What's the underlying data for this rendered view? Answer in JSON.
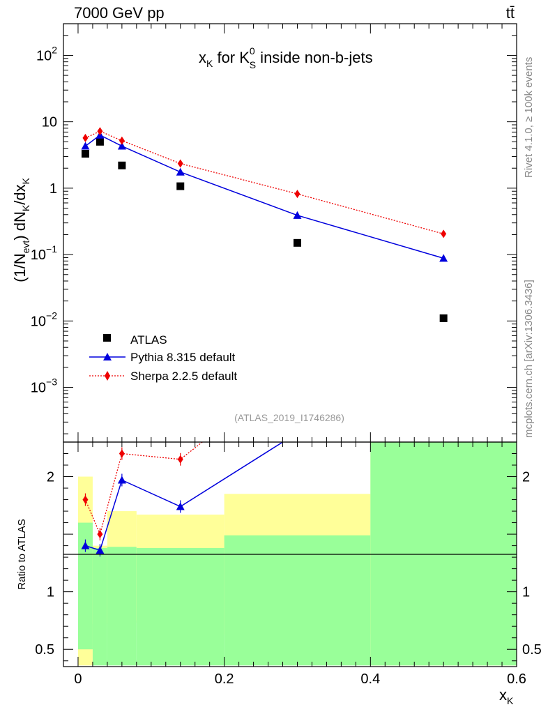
{
  "header": {
    "energy_label": "7000 GeV pp",
    "process_label": "tt̄"
  },
  "side_text": {
    "rivet": "Rivet 4.1.0, ≥ 100k events",
    "mcplots": "mcplots.cern.ch [arXiv:1306.3436]"
  },
  "chart_data": [
    {
      "type": "scatter",
      "panel": "main",
      "title_main": "x",
      "title_sub": "K",
      "title_for": " for K",
      "title_sup": "0",
      "title_sub2": "S",
      "title_rest": " inside non-b-jets",
      "ylabel": "(1/N_evt) dN_K/dx_K",
      "yscale": "log",
      "ylim": [
        0.00015,
        300
      ],
      "xlim": [
        -0.02,
        0.6
      ],
      "x": [
        0.01,
        0.03,
        0.06,
        0.14,
        0.3,
        0.5
      ],
      "series": [
        {
          "name": "ATLAS",
          "marker": "square",
          "color": "#000000",
          "values": [
            3.3,
            5.0,
            2.2,
            1.07,
            0.15,
            0.011
          ]
        },
        {
          "name": "Pythia 8.315 default",
          "marker": "triangle",
          "color": "#0000dd",
          "line": "solid",
          "values": [
            4.3,
            6.3,
            4.3,
            1.75,
            0.39,
            0.088
          ]
        },
        {
          "name": "Sherpa 2.2.5 default",
          "marker": "diamond",
          "color": "#ee0000",
          "line": "dotted",
          "values": [
            5.7,
            7.2,
            5.2,
            2.35,
            0.82,
            0.205
          ]
        }
      ],
      "y_ticks": [
        {
          "value": 100,
          "base": "10",
          "exp": "2"
        },
        {
          "value": 10,
          "base": "10",
          "exp": ""
        },
        {
          "value": 1,
          "base": "1",
          "exp": ""
        },
        {
          "value": 0.1,
          "base": "10",
          "exp": "−1"
        },
        {
          "value": 0.01,
          "base": "10",
          "exp": "−2"
        },
        {
          "value": 0.001,
          "base": "10",
          "exp": "−3"
        }
      ],
      "legend": [
        {
          "label": "ATLAS",
          "marker": "square"
        },
        {
          "label": "Pythia 8.315 default",
          "marker": "triangle"
        },
        {
          "label": "Sherpa 2.2.5 default",
          "marker": "diamond"
        }
      ],
      "legend_position": "bottom-left",
      "annotation": "(ATLAS_2019_I1746286)"
    },
    {
      "type": "scatter",
      "panel": "ratio",
      "ylabel": "Ratio to ATLAS",
      "xlabel_main": "x",
      "xlabel_sub": "K",
      "ylim": [
        0.35,
        2.3
      ],
      "xlim": [
        -0.02,
        0.6
      ],
      "x_ticks": [
        {
          "value": 0,
          "label": "0"
        },
        {
          "value": 0.2,
          "label": "0.2"
        },
        {
          "value": 0.4,
          "label": "0.4"
        },
        {
          "value": 0.6,
          "label": "0.6"
        }
      ],
      "y_ticks": [
        {
          "value": 2,
          "label": "2"
        },
        {
          "value": 1,
          "label": "1"
        },
        {
          "value": 0.5,
          "label": "0.5"
        }
      ],
      "bands": [
        {
          "x0": 0.0,
          "x1": 0.02,
          "yellow": [
            0.36,
            2.0
          ],
          "green": [
            0.5,
            1.6
          ]
        },
        {
          "x0": 0.02,
          "x1": 0.04,
          "yellow": [
            0.72,
            1.4
          ],
          "green": [
            0.36,
            1.38
          ]
        },
        {
          "x0": 0.04,
          "x1": 0.08,
          "yellow": [
            0.73,
            1.7
          ],
          "green": [
            0.36,
            1.39
          ]
        },
        {
          "x0": 0.08,
          "x1": 0.2,
          "yellow": [
            0.75,
            1.67
          ],
          "green": [
            0.36,
            1.38
          ]
        },
        {
          "x0": 0.2,
          "x1": 0.4,
          "yellow": [
            0.63,
            1.85
          ],
          "green": [
            0.36,
            1.49
          ]
        },
        {
          "x0": 0.4,
          "x1": 0.6,
          "yellow": [
            0.36,
            2.3
          ],
          "green": [
            0.36,
            2.3
          ]
        }
      ],
      "series": [
        {
          "name": "Pythia 8.315 default",
          "color": "#0000dd",
          "line": "solid",
          "x": [
            0.01,
            0.03,
            0.06,
            0.14,
            0.28
          ],
          "values": [
            1.4,
            1.36,
            1.97,
            1.74,
            2.3
          ]
        },
        {
          "name": "Sherpa 2.2.5 default",
          "color": "#ee0000",
          "line": "dotted",
          "x": [
            0.01,
            0.03,
            0.06,
            0.14,
            0.17
          ],
          "values": [
            1.8,
            1.5,
            2.2,
            2.15,
            2.3
          ]
        }
      ]
    }
  ]
}
